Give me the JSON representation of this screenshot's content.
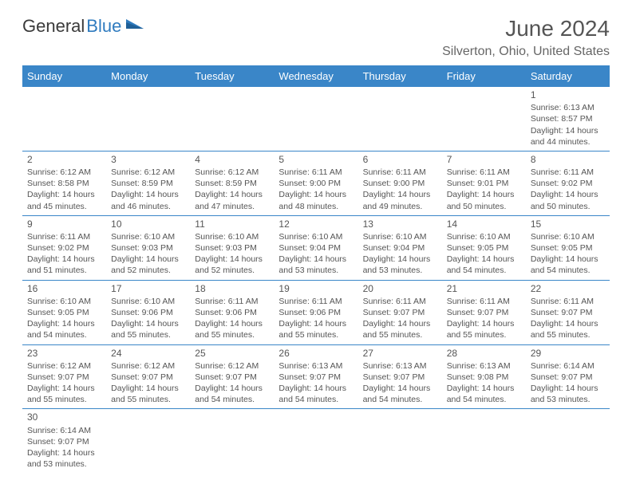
{
  "header": {
    "logo_general": "General",
    "logo_blue": "Blue",
    "title": "June 2024",
    "subtitle": "Silverton, Ohio, United States"
  },
  "colors": {
    "header_bg": "#3a86c8",
    "header_text": "#ffffff",
    "cell_border": "#3a86c8",
    "body_text": "#555555",
    "logo_blue": "#2f7bbf"
  },
  "weekdays": [
    "Sunday",
    "Monday",
    "Tuesday",
    "Wednesday",
    "Thursday",
    "Friday",
    "Saturday"
  ],
  "days": {
    "1": {
      "sunrise": "6:13 AM",
      "sunset": "8:57 PM",
      "daylight": "14 hours and 44 minutes."
    },
    "2": {
      "sunrise": "6:12 AM",
      "sunset": "8:58 PM",
      "daylight": "14 hours and 45 minutes."
    },
    "3": {
      "sunrise": "6:12 AM",
      "sunset": "8:59 PM",
      "daylight": "14 hours and 46 minutes."
    },
    "4": {
      "sunrise": "6:12 AM",
      "sunset": "8:59 PM",
      "daylight": "14 hours and 47 minutes."
    },
    "5": {
      "sunrise": "6:11 AM",
      "sunset": "9:00 PM",
      "daylight": "14 hours and 48 minutes."
    },
    "6": {
      "sunrise": "6:11 AM",
      "sunset": "9:00 PM",
      "daylight": "14 hours and 49 minutes."
    },
    "7": {
      "sunrise": "6:11 AM",
      "sunset": "9:01 PM",
      "daylight": "14 hours and 50 minutes."
    },
    "8": {
      "sunrise": "6:11 AM",
      "sunset": "9:02 PM",
      "daylight": "14 hours and 50 minutes."
    },
    "9": {
      "sunrise": "6:11 AM",
      "sunset": "9:02 PM",
      "daylight": "14 hours and 51 minutes."
    },
    "10": {
      "sunrise": "6:10 AM",
      "sunset": "9:03 PM",
      "daylight": "14 hours and 52 minutes."
    },
    "11": {
      "sunrise": "6:10 AM",
      "sunset": "9:03 PM",
      "daylight": "14 hours and 52 minutes."
    },
    "12": {
      "sunrise": "6:10 AM",
      "sunset": "9:04 PM",
      "daylight": "14 hours and 53 minutes."
    },
    "13": {
      "sunrise": "6:10 AM",
      "sunset": "9:04 PM",
      "daylight": "14 hours and 53 minutes."
    },
    "14": {
      "sunrise": "6:10 AM",
      "sunset": "9:05 PM",
      "daylight": "14 hours and 54 minutes."
    },
    "15": {
      "sunrise": "6:10 AM",
      "sunset": "9:05 PM",
      "daylight": "14 hours and 54 minutes."
    },
    "16": {
      "sunrise": "6:10 AM",
      "sunset": "9:05 PM",
      "daylight": "14 hours and 54 minutes."
    },
    "17": {
      "sunrise": "6:10 AM",
      "sunset": "9:06 PM",
      "daylight": "14 hours and 55 minutes."
    },
    "18": {
      "sunrise": "6:11 AM",
      "sunset": "9:06 PM",
      "daylight": "14 hours and 55 minutes."
    },
    "19": {
      "sunrise": "6:11 AM",
      "sunset": "9:06 PM",
      "daylight": "14 hours and 55 minutes."
    },
    "20": {
      "sunrise": "6:11 AM",
      "sunset": "9:07 PM",
      "daylight": "14 hours and 55 minutes."
    },
    "21": {
      "sunrise": "6:11 AM",
      "sunset": "9:07 PM",
      "daylight": "14 hours and 55 minutes."
    },
    "22": {
      "sunrise": "6:11 AM",
      "sunset": "9:07 PM",
      "daylight": "14 hours and 55 minutes."
    },
    "23": {
      "sunrise": "6:12 AM",
      "sunset": "9:07 PM",
      "daylight": "14 hours and 55 minutes."
    },
    "24": {
      "sunrise": "6:12 AM",
      "sunset": "9:07 PM",
      "daylight": "14 hours and 55 minutes."
    },
    "25": {
      "sunrise": "6:12 AM",
      "sunset": "9:07 PM",
      "daylight": "14 hours and 54 minutes."
    },
    "26": {
      "sunrise": "6:13 AM",
      "sunset": "9:07 PM",
      "daylight": "14 hours and 54 minutes."
    },
    "27": {
      "sunrise": "6:13 AM",
      "sunset": "9:07 PM",
      "daylight": "14 hours and 54 minutes."
    },
    "28": {
      "sunrise": "6:13 AM",
      "sunset": "9:08 PM",
      "daylight": "14 hours and 54 minutes."
    },
    "29": {
      "sunrise": "6:14 AM",
      "sunset": "9:07 PM",
      "daylight": "14 hours and 53 minutes."
    },
    "30": {
      "sunrise": "6:14 AM",
      "sunset": "9:07 PM",
      "daylight": "14 hours and 53 minutes."
    }
  },
  "layout": {
    "first_weekday_index": 6,
    "num_days": 30,
    "labels": {
      "sunrise": "Sunrise: ",
      "sunset": "Sunset: ",
      "daylight": "Daylight: "
    }
  }
}
